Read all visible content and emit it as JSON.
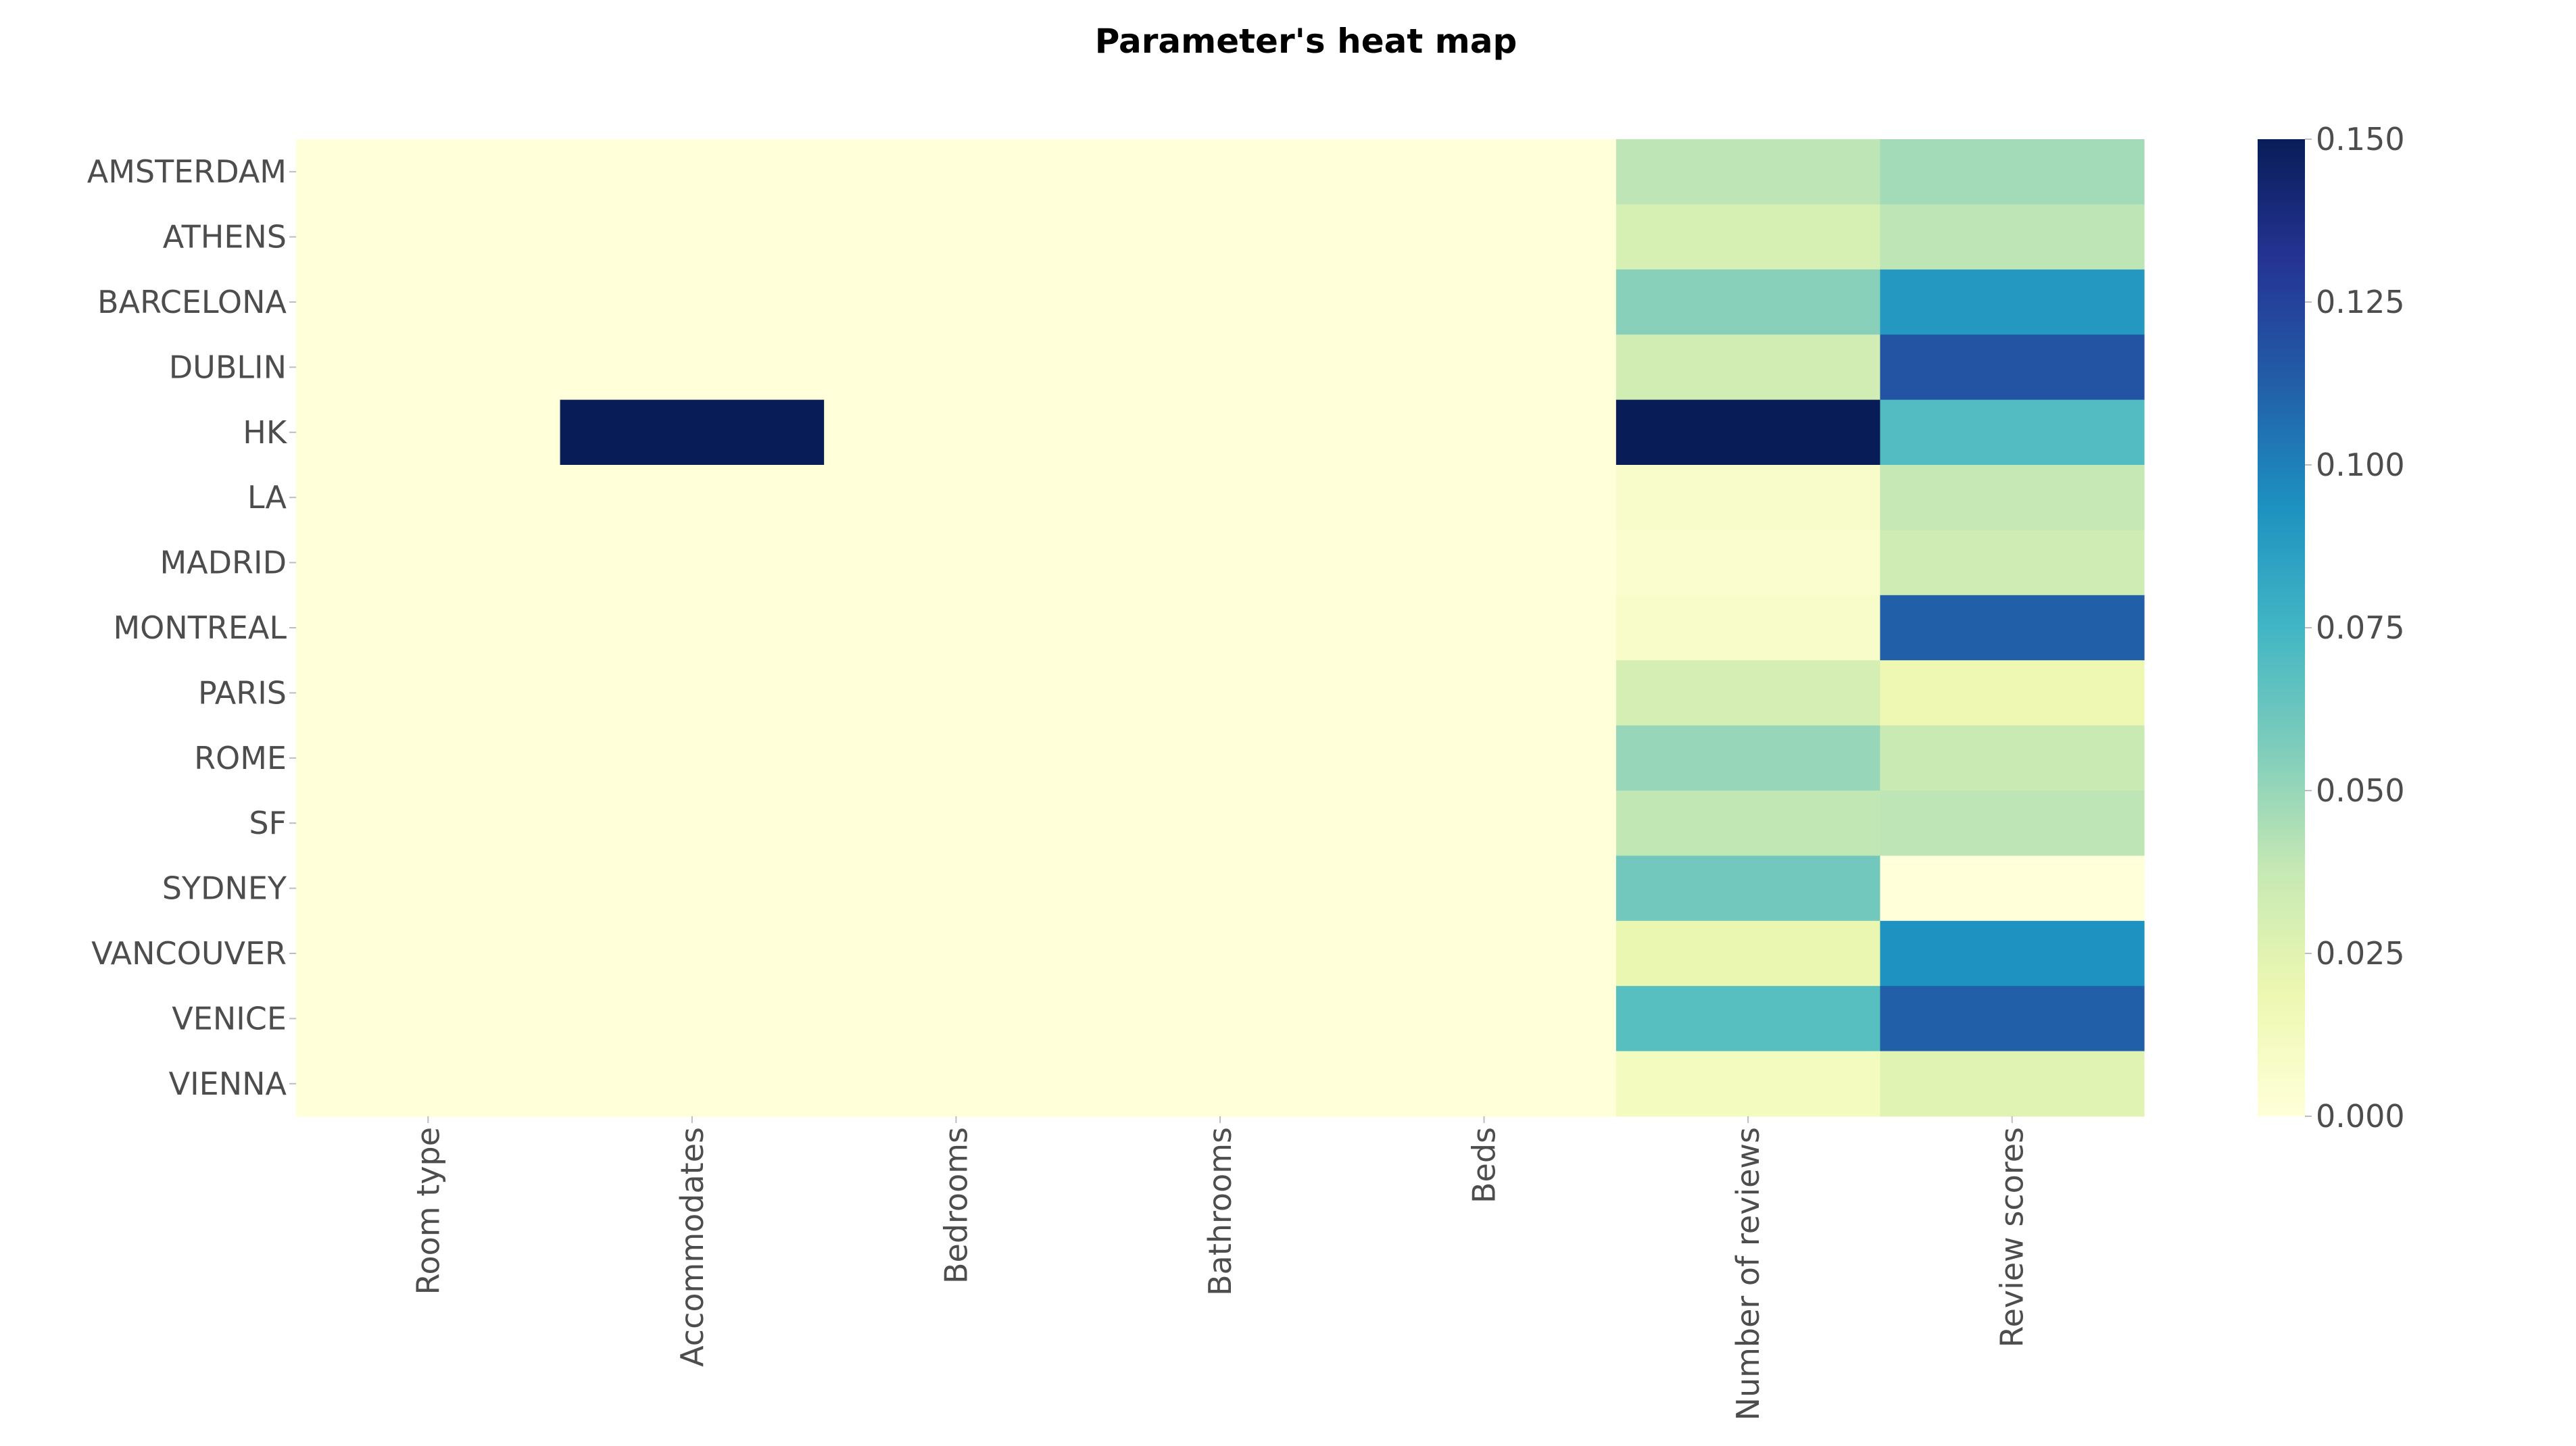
{
  "chart_data": {
    "type": "heatmap",
    "title": "Parameter's heat map",
    "xlabel": "",
    "ylabel": "",
    "columns": [
      "Room type",
      "Accommodates",
      "Bedrooms",
      "Bathrooms",
      "Beds",
      "Number of reviews",
      "Review scores"
    ],
    "rows": [
      "AMSTERDAM",
      "ATHENS",
      "BARCELONA",
      "DUBLIN",
      "HK",
      "LA",
      "MADRID",
      "MONTREAL",
      "PARIS",
      "ROME",
      "SF",
      "SYDNEY",
      "VANCOUVER",
      "VENICE",
      "VIENNA"
    ],
    "values": [
      [
        0,
        0,
        0,
        0,
        0,
        0.04,
        0.047
      ],
      [
        0,
        0,
        0,
        0,
        0,
        0.03,
        0.04
      ],
      [
        0,
        0,
        0,
        0,
        0,
        0.054,
        0.09
      ],
      [
        0,
        0,
        0,
        0,
        0,
        0.032,
        0.117
      ],
      [
        0,
        0.15,
        0,
        0,
        0,
        0.15,
        0.07
      ],
      [
        0,
        0,
        0,
        0,
        0,
        0.007,
        0.038
      ],
      [
        0,
        0,
        0,
        0,
        0,
        0.005,
        0.034
      ],
      [
        0,
        0,
        0,
        0,
        0,
        0.008,
        0.112
      ],
      [
        0,
        0,
        0,
        0,
        0,
        0.031,
        0.018
      ],
      [
        0,
        0,
        0,
        0,
        0,
        0.05,
        0.036
      ],
      [
        0,
        0,
        0,
        0,
        0,
        0.039,
        0.04
      ],
      [
        0,
        0,
        0,
        0,
        0,
        0.06,
        0.0
      ],
      [
        0,
        0,
        0,
        0,
        0,
        0.02,
        0.093
      ],
      [
        0,
        0,
        0,
        0,
        0,
        0.068,
        0.112
      ],
      [
        0,
        0,
        0,
        0,
        0,
        0.012,
        0.025
      ]
    ],
    "colorbar": {
      "range": [
        0,
        0.15
      ],
      "ticks": [
        "0.000",
        "0.025",
        "0.050",
        "0.075",
        "0.100",
        "0.125",
        "0.150"
      ],
      "colormap": "YlGnBu",
      "stops": [
        "#ffffd9",
        "#edf8b1",
        "#c7e9b4",
        "#7fcdbb",
        "#41b6c4",
        "#1d91c0",
        "#225ea8",
        "#253494",
        "#081d58"
      ]
    },
    "grid": false
  }
}
